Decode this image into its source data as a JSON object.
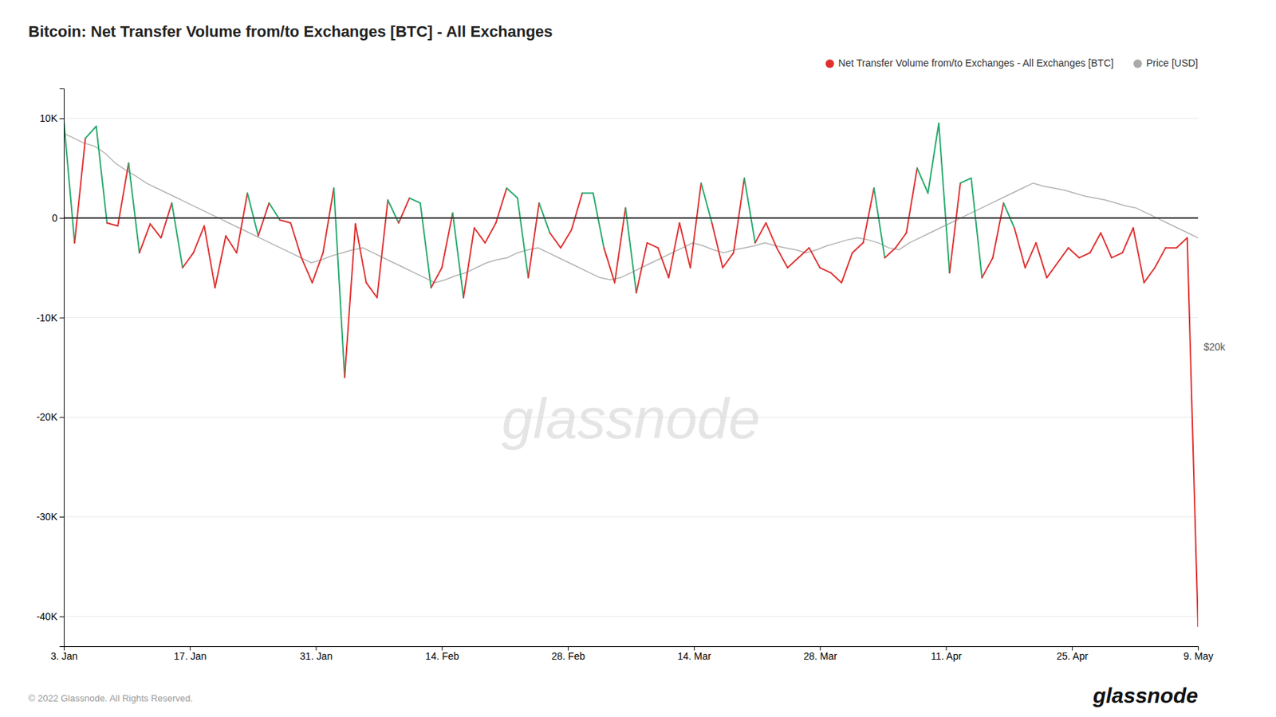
{
  "chart_data": {
    "type": "line",
    "title": "Bitcoin: Net Transfer Volume from/to Exchanges [BTC] - All Exchanges",
    "xlim": [
      0,
      1
    ],
    "xticks": [
      {
        "value": 0,
        "label": "3. Jan"
      },
      {
        "value": 0.1111111111111111,
        "label": "17. Jan"
      },
      {
        "value": 0.2222222222222222,
        "label": "31. Jan"
      },
      {
        "value": 0.3333333333333333,
        "label": "14. Feb"
      },
      {
        "value": 0.4444444444444444,
        "label": "28. Feb"
      },
      {
        "value": 0.5555555555555556,
        "label": "14. Mar"
      },
      {
        "value": 0.6666666666666666,
        "label": "28. Mar"
      },
      {
        "value": 0.7777777777777778,
        "label": "11. Apr"
      },
      {
        "value": 0.8888888888888888,
        "label": "25. Apr"
      },
      {
        "value": 1,
        "label": "9. May"
      }
    ],
    "ylim": [
      -43000,
      13000
    ],
    "yticks": [
      {
        "value": 10000,
        "label": "10K"
      },
      0,
      {
        "value": -10000,
        "label": "-10K"
      },
      {
        "value": -20000,
        "label": "-20K"
      },
      {
        "value": -30000,
        "label": "-30K"
      },
      {
        "value": -40000,
        "label": "-40K"
      }
    ],
    "grid": true,
    "legend": "top-right",
    "series": [
      {
        "name": "Net Transfer Volume from/to Exchanges - All Exchanges [BTC]",
        "color": "#e03030",
        "colors": [
          "#26a96c",
          "#e03030",
          "#26a96c",
          "#26a96c",
          "#e03030",
          "#e03030",
          "#26a96c",
          "#e03030",
          "#e03030",
          "#e03030",
          "#26a96c",
          "#e03030",
          "#e03030",
          "#e03030",
          "#e03030",
          "#e03030",
          "#e03030",
          "#26a96c",
          "#e03030",
          "#26a96c",
          "#e03030",
          "#e03030",
          "#e03030",
          "#e03030",
          "#e03030",
          "#26a96c",
          "#e03030",
          "#e03030",
          "#e03030",
          "#e03030",
          "#26a96c",
          "#e03030",
          "#26a96c",
          "#26a96c",
          "#e03030",
          "#e03030",
          "#26a96c",
          "#e03030",
          "#e03030",
          "#e03030",
          "#e03030",
          "#26a96c",
          "#26a96c",
          "#e03030",
          "#26a96c",
          "#e03030",
          "#e03030",
          "#e03030",
          "#26a96c",
          "#26a96c",
          "#e03030",
          "#e03030",
          "#26a96c",
          "#e03030",
          "#e03030",
          "#e03030",
          "#e03030",
          "#e03030",
          "#e03030",
          "#26a96c",
          "#e03030",
          "#e03030",
          "#e03030",
          "#26a96c",
          "#e03030",
          "#e03030",
          "#e03030",
          "#e03030",
          "#e03030",
          "#e03030",
          "#e03030",
          "#e03030",
          "#e03030",
          "#e03030",
          "#e03030",
          "#26a96c",
          "#e03030",
          "#e03030",
          "#e03030",
          "#26a96c",
          "#26a96c",
          "#26a96c",
          "#e03030",
          "#26a96c",
          "#26a96c",
          "#e03030",
          "#e03030",
          "#26a96c",
          "#e03030",
          "#e03030",
          "#e03030",
          "#e03030",
          "#e03030",
          "#e03030",
          "#e03030",
          "#e03030",
          "#e03030",
          "#e03030",
          "#e03030",
          "#e03030",
          "#e03030",
          "#e03030",
          "#e03030",
          "#e03030",
          "#e03030"
        ],
        "values": [
          9800,
          -2500,
          8000,
          9200,
          -500,
          -800,
          5500,
          -3500,
          -600,
          -2000,
          1500,
          -5000,
          -3500,
          -800,
          -7000,
          -1800,
          -3500,
          2500,
          -1800,
          1500,
          -200,
          -500,
          -4000,
          -6500,
          -3500,
          3000,
          -16000,
          -600,
          -6500,
          -8000,
          1800,
          -500,
          2000,
          1500,
          -7000,
          -5000,
          500,
          -8000,
          -1000,
          -2500,
          -500,
          3000,
          2000,
          -6000,
          1500,
          -1500,
          -3000,
          -1200,
          2500,
          2500,
          -3000,
          -6500,
          1000,
          -7500,
          -2500,
          -3000,
          -6000,
          -500,
          -5000,
          3500,
          -500,
          -5000,
          -3500,
          4000,
          -2500,
          -500,
          -3000,
          -5000,
          -4000,
          -3000,
          -5000,
          -5500,
          -6500,
          -3500,
          -2500,
          3000,
          -4000,
          -3000,
          -1500,
          5000,
          2500,
          9500,
          -5500,
          3500,
          4000,
          -6000,
          -4000,
          1500,
          -1000,
          -5000,
          -2500,
          -6000,
          -4500,
          -3000,
          -4000,
          -3500,
          -1500,
          -4000,
          -3500,
          -1000,
          -6500,
          -5000,
          -3000,
          -3000,
          -2000,
          -41000
        ]
      },
      {
        "name": "Price [USD]",
        "color": "#aaaaaa",
        "values": [
          8500,
          8000,
          7500,
          7200,
          6500,
          5500,
          4800,
          4200,
          3500,
          3000,
          2500,
          2000,
          1500,
          1000,
          500,
          0,
          -500,
          -1000,
          -1500,
          -2000,
          -2500,
          -3000,
          -3500,
          -4000,
          -4500,
          -4200,
          -3800,
          -3500,
          -3200,
          -3000,
          -3500,
          -4000,
          -4500,
          -5000,
          -5500,
          -6000,
          -6500,
          -6200,
          -5800,
          -5500,
          -5000,
          -4500,
          -4200,
          -4000,
          -3500,
          -3200,
          -3000,
          -3500,
          -4000,
          -4500,
          -5000,
          -5500,
          -6000,
          -6200,
          -6000,
          -5500,
          -5000,
          -4500,
          -4000,
          -3500,
          -3000,
          -2500,
          -2800,
          -3200,
          -3500,
          -3200,
          -3000,
          -2800,
          -2500,
          -2800,
          -3000,
          -3200,
          -3500,
          -3200,
          -2800,
          -2500,
          -2200,
          -2000,
          -2200,
          -2500,
          -3000,
          -3200,
          -2500,
          -2000,
          -1500,
          -1000,
          -500,
          0,
          500,
          1000,
          1500,
          2000,
          2500,
          3000,
          3500,
          3200,
          3000,
          2800,
          2500,
          2200,
          2000,
          1800,
          1500,
          1200,
          1000,
          500,
          0,
          -500,
          -1000,
          -1500,
          -2000
        ]
      }
    ],
    "reference_lines": [
      {
        "value": 0,
        "color": "#333333"
      }
    ],
    "annotations": [
      {
        "text": "$20k",
        "y": -13000
      }
    ],
    "watermark": "glassnode",
    "copyright": "© 2022 Glassnode. All Rights Reserved."
  }
}
